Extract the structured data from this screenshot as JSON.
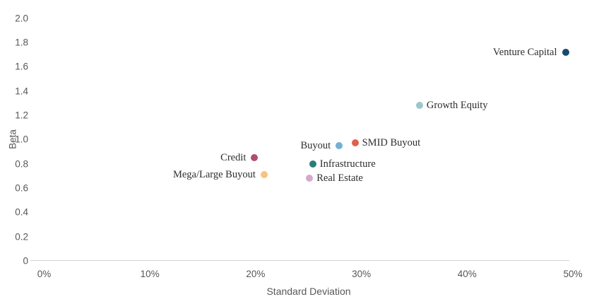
{
  "chart_data": {
    "type": "scatter",
    "title": "",
    "xlabel": "Standard Deviation",
    "ylabel": "Beta",
    "xlim": [
      0,
      50
    ],
    "ylim": [
      0,
      2.0
    ],
    "grid": false,
    "legend": "none (points labeled directly)",
    "x_ticks": [
      {
        "value": 0,
        "label": "0%"
      },
      {
        "value": 10,
        "label": "10%"
      },
      {
        "value": 20,
        "label": "20%"
      },
      {
        "value": 30,
        "label": "30%"
      },
      {
        "value": 40,
        "label": "40%"
      },
      {
        "value": 50,
        "label": "50%"
      }
    ],
    "y_ticks": [
      {
        "value": 2.0,
        "label": "2.0"
      },
      {
        "value": 1.8,
        "label": "1.8"
      },
      {
        "value": 1.6,
        "label": "1.6"
      },
      {
        "value": 1.4,
        "label": "1.4"
      },
      {
        "value": 1.2,
        "label": "1.2"
      },
      {
        "value": 1.0,
        "label": "1.0"
      },
      {
        "value": 0.8,
        "label": "0.8"
      },
      {
        "value": 0.6,
        "label": "0.6"
      },
      {
        "value": 0.4,
        "label": "0.4"
      },
      {
        "value": 0.2,
        "label": "0.2"
      },
      {
        "value": 0,
        "label": "0"
      }
    ],
    "points": [
      {
        "label": "Venture Capital",
        "std_dev_pct": 49.3,
        "beta": 1.72,
        "color": "#174a6d",
        "label_side": "left"
      },
      {
        "label": "Growth Equity",
        "std_dev_pct": 35.5,
        "beta": 1.28,
        "color": "#9dc6cc",
        "label_side": "right"
      },
      {
        "label": "SMID Buyout",
        "std_dev_pct": 29.4,
        "beta": 0.97,
        "color": "#e0604d",
        "label_side": "right"
      },
      {
        "label": "Buyout",
        "std_dev_pct": 27.9,
        "beta": 0.95,
        "color": "#76aed5",
        "label_side": "left"
      },
      {
        "label": "Infrastructure",
        "std_dev_pct": 25.4,
        "beta": 0.8,
        "color": "#2a7e79",
        "label_side": "right"
      },
      {
        "label": "Real Estate",
        "std_dev_pct": 25.1,
        "beta": 0.68,
        "color": "#d3aacb",
        "label_side": "right"
      },
      {
        "label": "Credit",
        "std_dev_pct": 19.9,
        "beta": 0.85,
        "color": "#b04e72",
        "label_side": "left"
      },
      {
        "label": "Mega/Large Buyout",
        "std_dev_pct": 20.8,
        "beta": 0.71,
        "color": "#f9c182",
        "label_side": "left"
      }
    ],
    "colors": {
      "axis_line": "#d2d2d2",
      "tick_text": "#575757",
      "point_label_text": "#2e2e2e",
      "background": "#ffffff"
    }
  }
}
